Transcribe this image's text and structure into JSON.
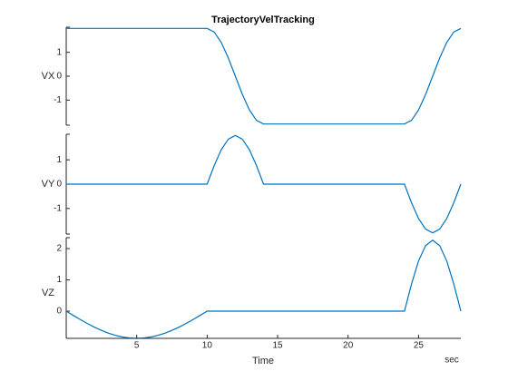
{
  "chart_data": {
    "type": "line",
    "layout": "stacked",
    "title": "TrajectoryVelTracking",
    "xlabel": "Time",
    "xunit": "sec",
    "x": [
      0,
      0.5,
      1,
      1.5,
      2,
      2.5,
      3,
      3.5,
      4,
      4.5,
      5,
      5.5,
      6,
      6.5,
      7,
      7.5,
      8,
      8.5,
      9,
      9.5,
      10,
      10.5,
      11,
      11.5,
      12,
      12.5,
      13,
      13.5,
      14,
      14.5,
      15,
      15.5,
      16,
      16.5,
      17,
      17.5,
      18,
      18.5,
      19,
      19.5,
      20,
      20.5,
      21,
      21.5,
      22,
      22.5,
      23,
      23.5,
      24,
      24.5,
      25,
      25.5,
      26,
      26.5,
      27,
      27.5,
      28
    ],
    "xlim": [
      0,
      28
    ],
    "xticks": [
      5,
      10,
      15,
      20,
      25
    ],
    "series": [
      {
        "name": "VX",
        "color": "#0072bd",
        "ylim": [
          -2.05,
          2.05
        ],
        "yticks": [
          -1,
          0,
          1
        ],
        "values": [
          2,
          2,
          2,
          2,
          2,
          2,
          2,
          2,
          2,
          2,
          2,
          2,
          2,
          2,
          2,
          2,
          2,
          2,
          2,
          2,
          2,
          1.848,
          1.414,
          0.765,
          0,
          -0.765,
          -1.414,
          -1.848,
          -2,
          -2,
          -2,
          -2,
          -2,
          -2,
          -2,
          -2,
          -2,
          -2,
          -2,
          -2,
          -2,
          -2,
          -2,
          -2,
          -2,
          -2,
          -2,
          -2,
          -2,
          -1.848,
          -1.414,
          -0.765,
          0,
          0.765,
          1.414,
          1.848,
          2
        ]
      },
      {
        "name": "VY",
        "color": "#0072bd",
        "ylim": [
          -2.05,
          2.05
        ],
        "yticks": [
          -1,
          0,
          1
        ],
        "values": [
          0,
          0,
          0,
          0,
          0,
          0,
          0,
          0,
          0,
          0,
          0,
          0,
          0,
          0,
          0,
          0,
          0,
          0,
          0,
          0,
          0,
          0.765,
          1.414,
          1.848,
          2,
          1.848,
          1.414,
          0.765,
          0,
          0,
          0,
          0,
          0,
          0,
          0,
          0,
          0,
          0,
          0,
          0,
          0,
          0,
          0,
          0,
          0,
          0,
          0,
          0,
          0,
          -0.765,
          -1.414,
          -1.848,
          -2,
          -1.848,
          -1.414,
          -0.765,
          0
        ]
      },
      {
        "name": "VZ",
        "color": "#0072bd",
        "ylim": [
          -0.87,
          2.35
        ],
        "yticks": [
          0,
          1,
          2
        ],
        "values": [
          0,
          -0.136,
          -0.269,
          -0.395,
          -0.512,
          -0.615,
          -0.704,
          -0.775,
          -0.827,
          -0.859,
          -0.87,
          -0.859,
          -0.827,
          -0.775,
          -0.704,
          -0.615,
          -0.512,
          -0.395,
          -0.269,
          -0.136,
          0,
          0,
          0,
          0,
          0,
          0,
          0,
          0,
          0,
          0,
          0,
          0,
          0,
          0,
          0,
          0,
          0,
          0,
          0,
          0,
          0,
          0,
          0,
          0,
          0,
          0,
          0,
          0,
          0,
          0.869,
          1.605,
          2.097,
          2.27,
          2.097,
          1.605,
          0.869,
          0
        ]
      }
    ]
  }
}
